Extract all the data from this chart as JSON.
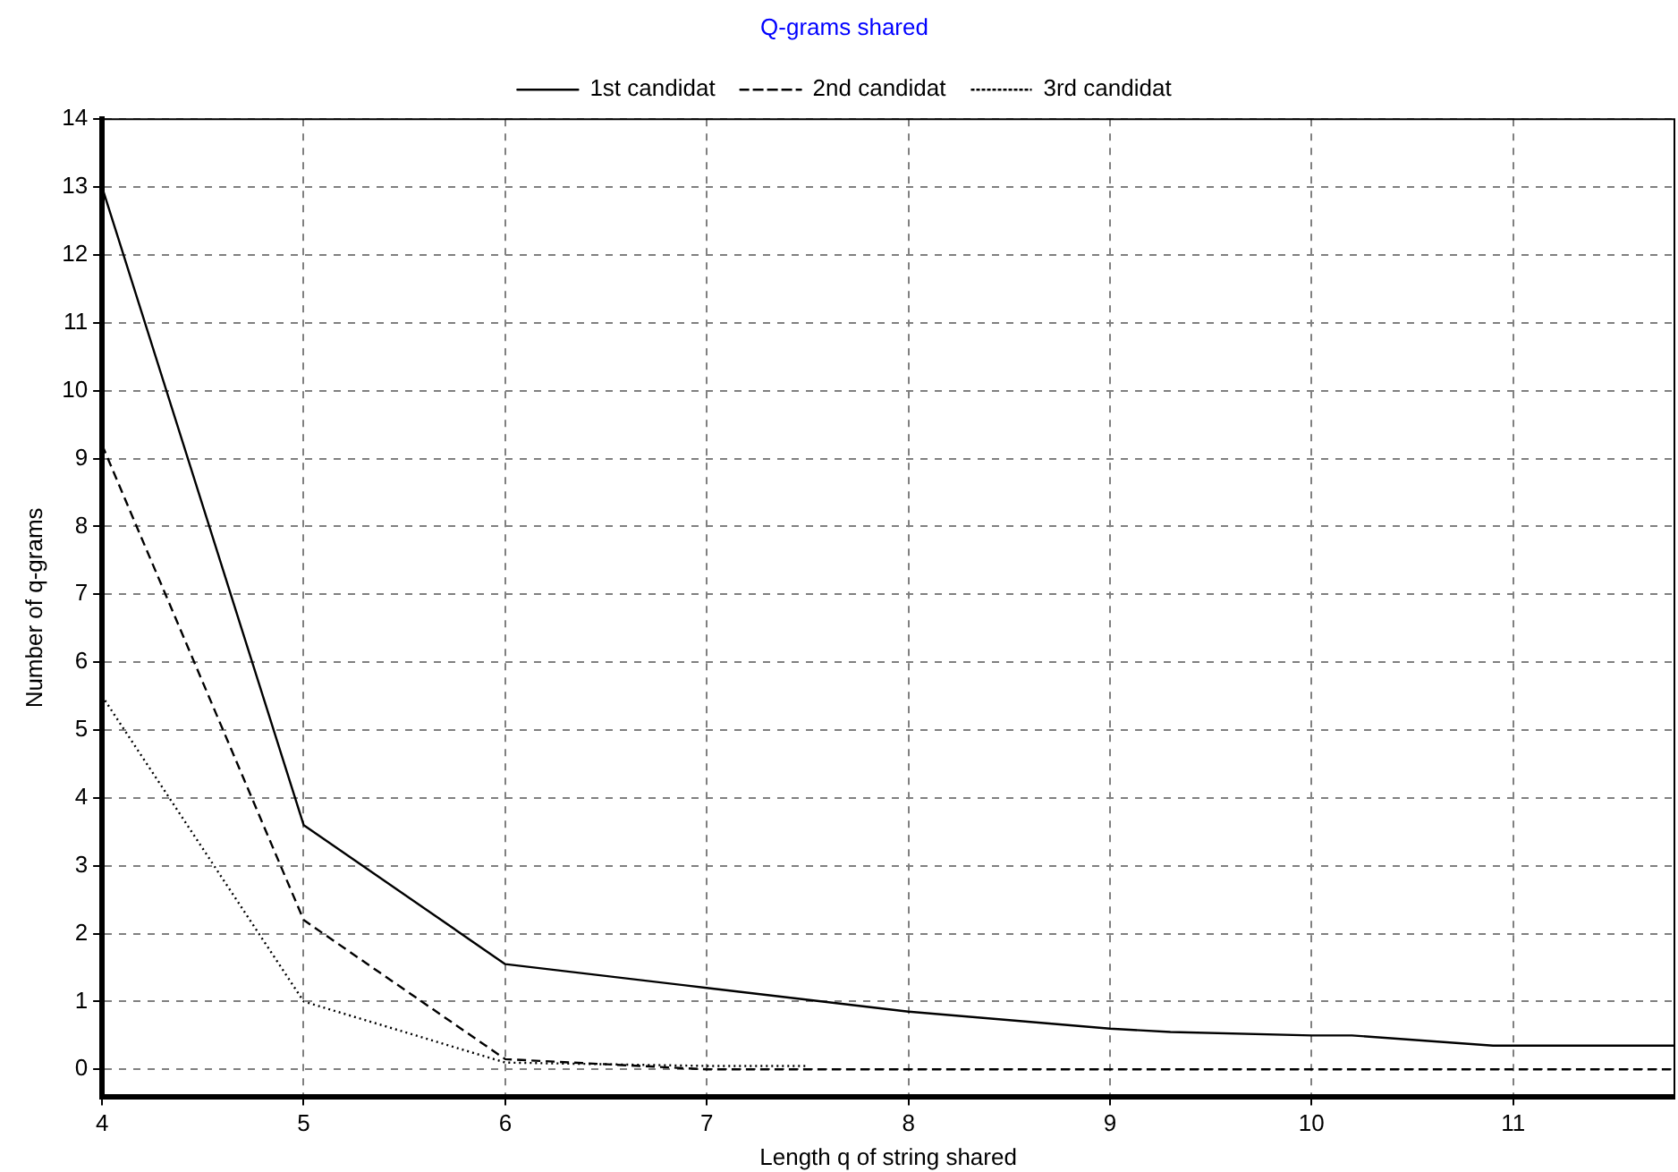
{
  "chart_data": {
    "type": "line",
    "title": "Q-grams shared",
    "xlabel": "Length q of string shared",
    "ylabel": "Number of q-grams",
    "series": [
      {
        "name": "1st candidat",
        "color": "#000000",
        "line_style": "solid",
        "x": [
          4,
          5,
          6,
          7,
          8,
          9,
          9.3,
          10,
          10.2,
          10.9,
          11,
          11.8
        ],
        "values": [
          13,
          3.6,
          1.55,
          1.2,
          0.85,
          0.6,
          0.55,
          0.5,
          0.5,
          0.35,
          0.35,
          0.35
        ]
      },
      {
        "name": "2nd candidat",
        "color": "#000000",
        "line_style": "dashed",
        "x": [
          4,
          5,
          6,
          7,
          8,
          9,
          10,
          11,
          11.8
        ],
        "values": [
          9.2,
          2.2,
          0.15,
          0,
          0,
          0,
          0,
          0,
          0
        ]
      },
      {
        "name": "3rd candidat",
        "color": "#000000",
        "line_style": "dotted",
        "x": [
          4,
          5,
          6,
          7,
          7.5
        ],
        "values": [
          5.5,
          1,
          0.1,
          0.05,
          0.05
        ]
      }
    ],
    "xlim": [
      4,
      11.8
    ],
    "xticks": [
      4,
      5,
      6,
      7,
      8,
      9,
      10,
      11
    ],
    "ylim": [
      -0.4,
      14
    ],
    "yticks": [
      0,
      1,
      2,
      3,
      4,
      5,
      6,
      7,
      8,
      9,
      10,
      11,
      12,
      13,
      14
    ],
    "grid": true,
    "legend": "top",
    "marker": "none"
  }
}
